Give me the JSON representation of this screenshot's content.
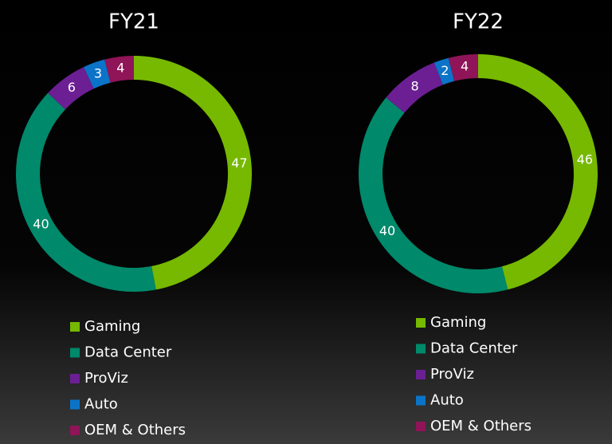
{
  "chart_data": [
    {
      "type": "donut",
      "title": "FY21",
      "categories": [
        "Gaming",
        "Data Center",
        "ProViz",
        "Auto",
        "OEM & Others"
      ],
      "values": [
        47,
        40,
        6,
        3,
        4
      ],
      "colors": [
        "#76b900",
        "#00896b",
        "#6b1f93",
        "#0b74c8",
        "#8f1458"
      ]
    },
    {
      "type": "donut",
      "title": "FY22",
      "categories": [
        "Gaming",
        "Data Center",
        "ProViz",
        "Auto",
        "OEM & Others"
      ],
      "values": [
        46,
        40,
        8,
        2,
        4
      ],
      "colors": [
        "#76b900",
        "#00896b",
        "#6b1f93",
        "#0b74c8",
        "#8f1458"
      ]
    }
  ]
}
